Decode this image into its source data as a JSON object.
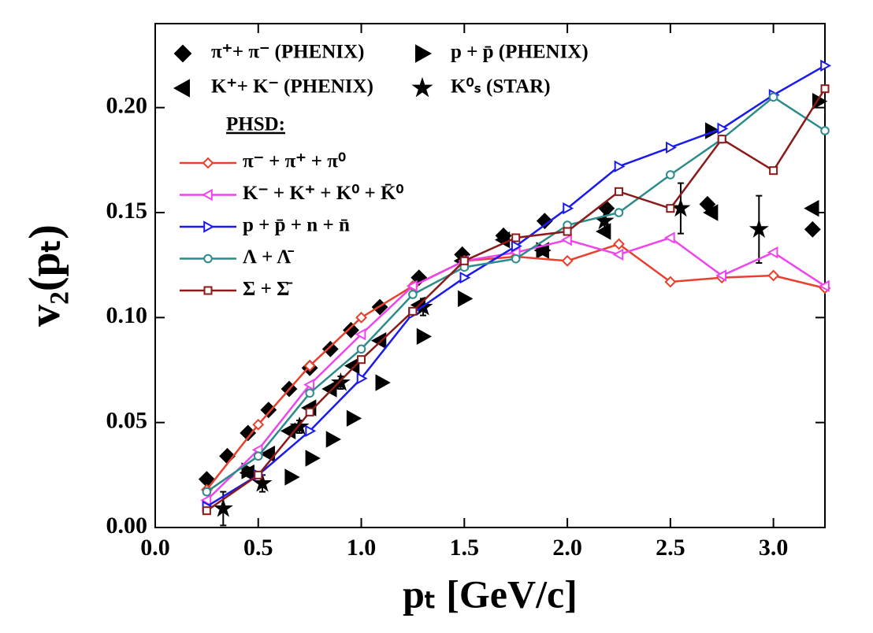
{
  "chart_data": {
    "type": "line",
    "xlabel": "pₜ [GeV/c]",
    "ylabel": "v₂(pₜ)",
    "xlim": [
      0,
      3.25
    ],
    "ylim": [
      0,
      0.24
    ],
    "xticks": [
      {
        "value": 0,
        "label": "0.0"
      },
      {
        "value": 0.5,
        "label": "0.5"
      },
      {
        "value": 1,
        "label": "1.0"
      },
      {
        "value": 1.5,
        "label": "1.5"
      },
      {
        "value": 2,
        "label": "2.0"
      },
      {
        "value": 2.5,
        "label": "2.5"
      },
      {
        "value": 3,
        "label": "3.0"
      }
    ],
    "yticks": [
      {
        "value": 0,
        "label": "0.00"
      },
      {
        "value": 0.05,
        "label": "0.05"
      },
      {
        "value": 0.1,
        "label": "0.10"
      },
      {
        "value": 0.15,
        "label": "0.15"
      },
      {
        "value": 0.2,
        "label": "0.20"
      }
    ],
    "legend_title": "PHSD:",
    "series": [
      {
        "name": "π⁺+ π⁻ (PHENIX)",
        "color": "#000000",
        "marker": "diamond",
        "style": "points",
        "x": [
          0.25,
          0.35,
          0.45,
          0.55,
          0.65,
          0.75,
          0.85,
          0.95,
          1.09,
          1.28,
          1.49,
          1.69,
          1.89,
          2.19,
          2.68,
          3.19
        ],
        "values": [
          0.023,
          0.034,
          0.045,
          0.056,
          0.066,
          0.076,
          0.085,
          0.094,
          0.105,
          0.119,
          0.13,
          0.139,
          0.146,
          0.152,
          0.154,
          0.142
        ]
      },
      {
        "name": "p + p̄ (PHENIX)",
        "color": "#000000",
        "marker": "right",
        "style": "points",
        "x": [
          0.45,
          0.66,
          0.76,
          0.86,
          0.96,
          1.1,
          1.3,
          1.5,
          1.88,
          2.7,
          3.22
        ],
        "values": [
          0.027,
          0.024,
          0.033,
          0.042,
          0.052,
          0.069,
          0.091,
          0.109,
          0.132,
          0.189,
          0.203
        ]
      },
      {
        "name": "K⁺+ K⁻ (PHENIX)",
        "color": "#000000",
        "marker": "left",
        "style": "points",
        "x": [
          0.45,
          0.55,
          0.65,
          0.75,
          0.85,
          0.96,
          1.09,
          1.28,
          1.49,
          1.69,
          1.88,
          2.18,
          2.7,
          3.19
        ],
        "values": [
          0.026,
          0.035,
          0.046,
          0.057,
          0.066,
          0.077,
          0.089,
          0.106,
          0.127,
          0.137,
          0.132,
          0.141,
          0.15,
          0.152
        ]
      },
      {
        "name": "K⁰ₛ (STAR)",
        "color": "#000000",
        "marker": "star",
        "style": "points",
        "x": [
          0.33,
          0.52,
          0.7,
          0.9,
          1.3,
          2.18,
          2.55,
          2.93
        ],
        "values": [
          0.009,
          0.021,
          0.048,
          0.069,
          0.105,
          0.146,
          0.152,
          0.142
        ],
        "errors": [
          0.008,
          0.004,
          0.003,
          0.003,
          0.004,
          0.006,
          0.012,
          0.016
        ]
      },
      {
        "name": "π⁻ + π⁺ + π⁰",
        "color": "#e8402c",
        "marker": "diamond",
        "style": "line",
        "x": [
          0.25,
          0.5,
          0.75,
          1,
          1.25,
          1.5,
          1.75,
          2,
          2.25,
          2.5,
          2.75,
          3,
          3.25
        ],
        "values": [
          0.018,
          0.049,
          0.077,
          0.1,
          0.115,
          0.127,
          0.129,
          0.127,
          0.135,
          0.117,
          0.119,
          0.12,
          0.114
        ]
      },
      {
        "name": "K⁻ + K⁺ + K⁰ + K̄⁰",
        "color": "#ee44ee",
        "marker": "left",
        "style": "line",
        "x": [
          0.25,
          0.5,
          0.75,
          1,
          1.25,
          1.5,
          1.75,
          2,
          2.25,
          2.5,
          2.75,
          3,
          3.25
        ],
        "values": [
          0.013,
          0.037,
          0.068,
          0.092,
          0.115,
          0.127,
          0.131,
          0.137,
          0.13,
          0.138,
          0.12,
          0.131,
          0.115
        ]
      },
      {
        "name": "p + p̄ + n + n̄",
        "color": "#1a1aee",
        "marker": "right",
        "style": "line",
        "x": [
          0.25,
          0.5,
          0.75,
          1,
          1.25,
          1.5,
          1.75,
          2,
          2.25,
          2.5,
          2.75,
          3,
          3.25
        ],
        "values": [
          0.01,
          0.025,
          0.046,
          0.071,
          0.102,
          0.119,
          0.134,
          0.152,
          0.172,
          0.181,
          0.19,
          0.206,
          0.22
        ]
      },
      {
        "name": "Λ + Λ̄",
        "color": "#2e8b8b",
        "marker": "circle",
        "style": "line",
        "x": [
          0.25,
          0.5,
          0.75,
          1,
          1.25,
          1.5,
          1.75,
          2,
          2.25,
          2.5,
          2.75,
          3,
          3.25
        ],
        "values": [
          0.017,
          0.034,
          0.064,
          0.085,
          0.111,
          0.124,
          0.128,
          0.144,
          0.15,
          0.168,
          0.185,
          0.205,
          0.189
        ]
      },
      {
        "name": "Σ + Σ̄",
        "color": "#8b1a1a",
        "marker": "square",
        "style": "line",
        "x": [
          0.25,
          0.5,
          0.75,
          1,
          1.25,
          1.5,
          1.75,
          2,
          2.25,
          2.5,
          2.75,
          3,
          3.25
        ],
        "values": [
          0.008,
          0.025,
          0.055,
          0.08,
          0.103,
          0.127,
          0.138,
          0.141,
          0.16,
          0.152,
          0.185,
          0.17,
          0.209
        ]
      }
    ]
  }
}
